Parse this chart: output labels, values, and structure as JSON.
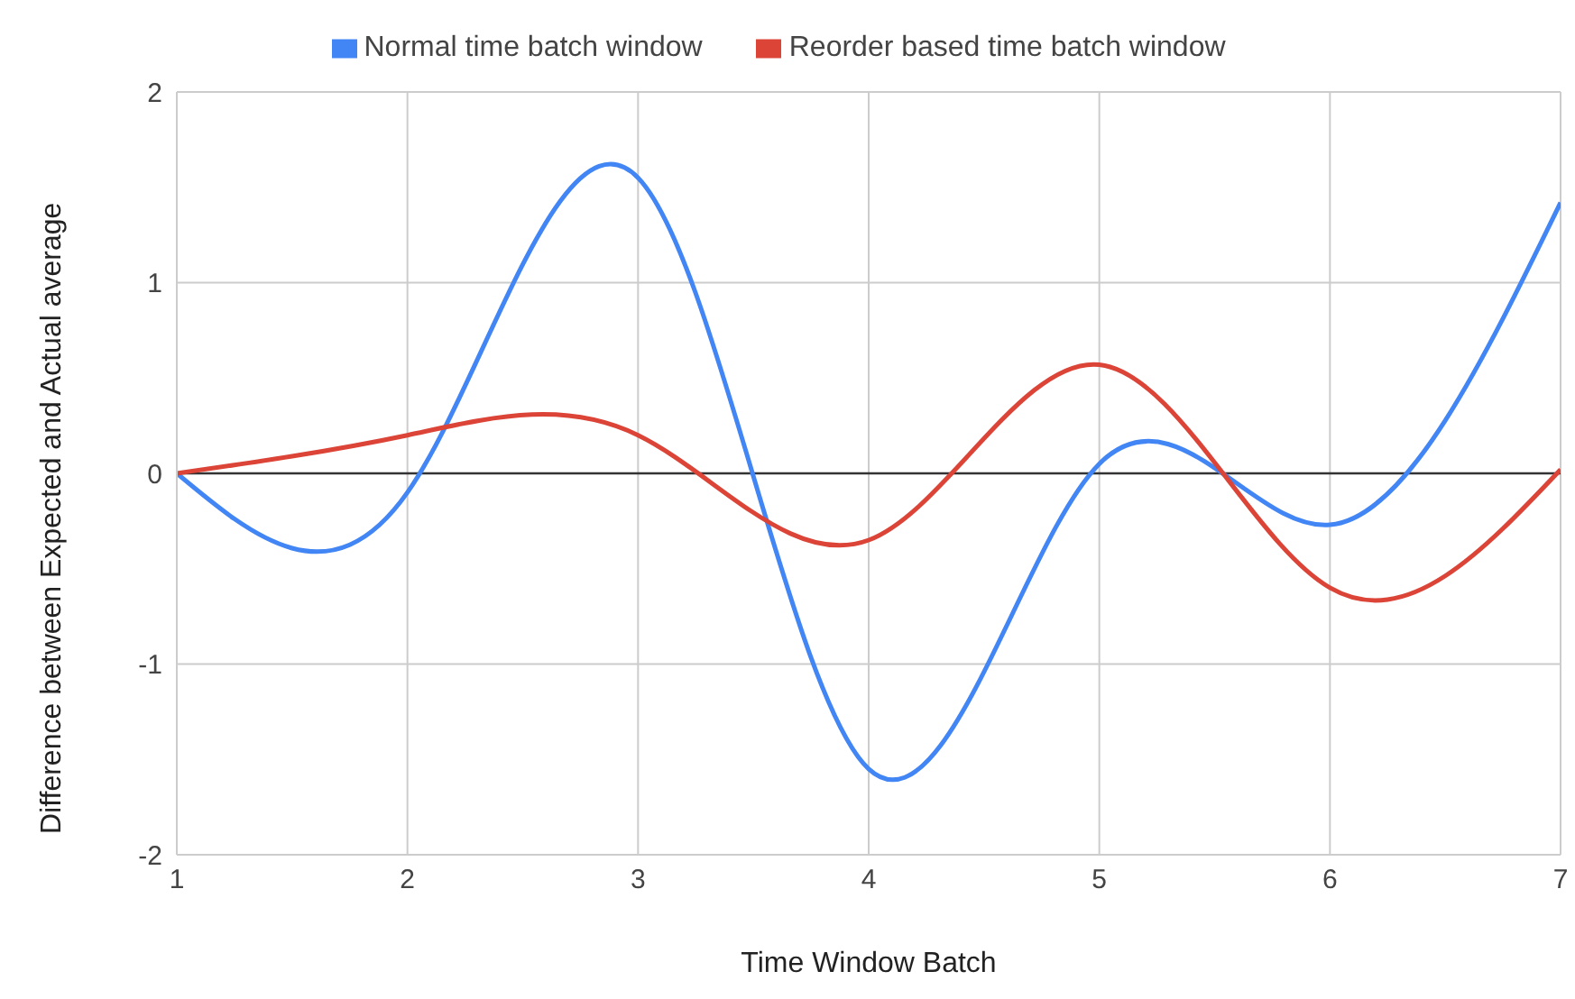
{
  "chart_data": {
    "type": "line",
    "xlabel": "Time Window Batch",
    "ylabel": "Difference between Expected and Actual average",
    "x": [
      1,
      2,
      3,
      4,
      5,
      6,
      7
    ],
    "series": [
      {
        "name": "Normal time batch window",
        "color": "#4285f4",
        "values": [
          0,
          -0.1,
          1.55,
          -1.55,
          0.05,
          -0.27,
          1.42
        ]
      },
      {
        "name": "Reorder based time batch window",
        "color": "#db4437",
        "values": [
          0,
          0.2,
          0.2,
          -0.35,
          0.57,
          -0.6,
          0.02
        ]
      }
    ],
    "xlim": [
      1,
      7
    ],
    "xticks": [
      1,
      2,
      3,
      4,
      5,
      6,
      7
    ],
    "ylim": [
      -2,
      2
    ],
    "yticks": [
      -2,
      -1,
      0,
      1,
      2
    ],
    "ref_lines": [
      {
        "axis": "y",
        "value": 0,
        "color": "#333333"
      }
    ],
    "grid": true,
    "legend": "top",
    "marker": "none",
    "line_style": "solid"
  }
}
